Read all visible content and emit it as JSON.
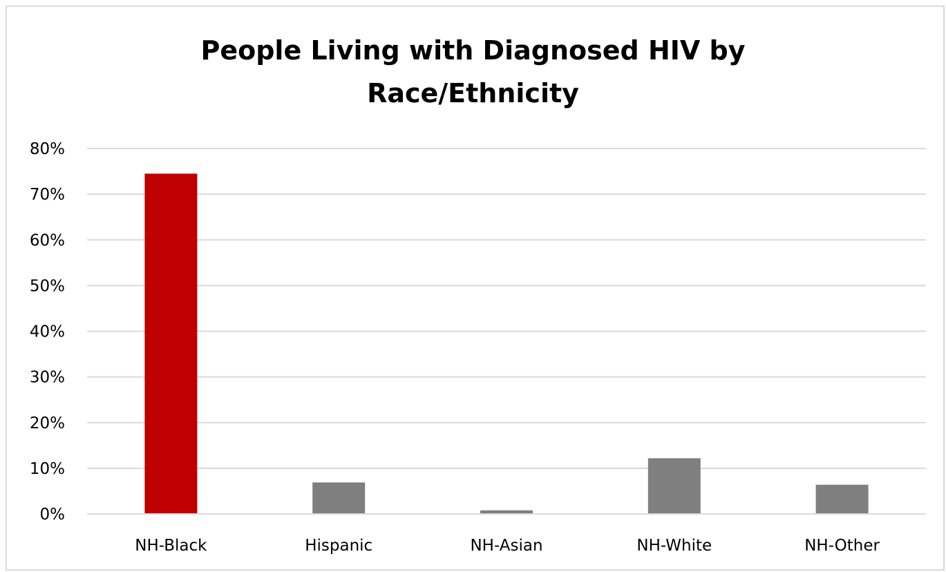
{
  "chart_data": {
    "type": "bar",
    "title_lines": [
      "People Living with Diagnosed HIV by",
      "Race/Ethnicity"
    ],
    "categories": [
      "NH-Black",
      "Hispanic",
      "NH-Asian",
      "NH-White",
      "NH-Other"
    ],
    "values": [
      74.5,
      6.9,
      0.8,
      12.2,
      6.4
    ],
    "unit": "%",
    "ylim": [
      0,
      80
    ],
    "yticks": [
      0,
      10,
      20,
      30,
      40,
      50,
      60,
      70,
      80
    ],
    "ytick_labels": [
      "0%",
      "10%",
      "20%",
      "30%",
      "40%",
      "50%",
      "60%",
      "70%",
      "80%"
    ],
    "xlabel": "",
    "ylabel": "",
    "grid": true,
    "legend": "none",
    "colors": {
      "highlight": "#c00000",
      "default": "#7f7f7f",
      "grid": "#d9d9d9",
      "axis": "#d9d9d9"
    },
    "bar_colors": [
      "highlight",
      "default",
      "default",
      "default",
      "default"
    ]
  }
}
